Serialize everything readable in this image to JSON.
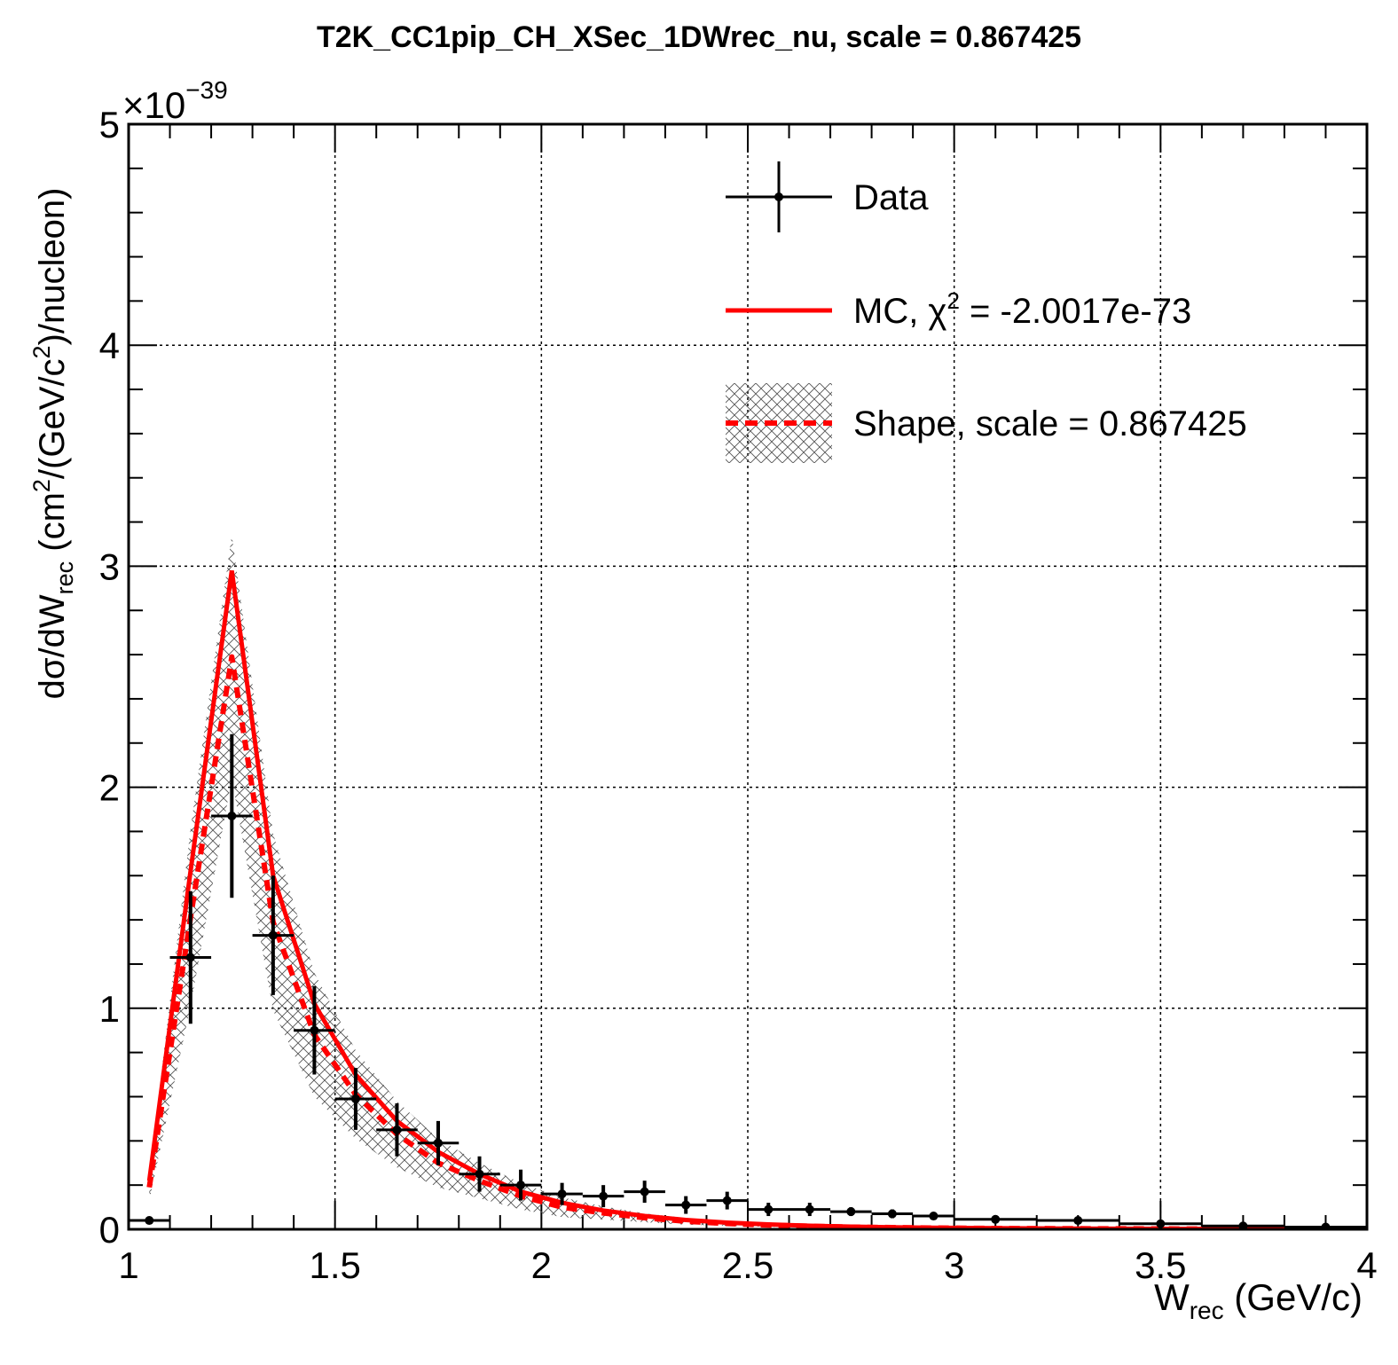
{
  "chart_data": {
    "type": "line",
    "title": "T2K_CC1pip_CH_XSec_1DWrec_nu, scale = 0.867425",
    "xlabel": {
      "main": "W",
      "sub": "rec",
      "unit": " (GeV/c)"
    },
    "ylabel": {
      "p1": "dσ/dW",
      "sub": "rec",
      "p2": " (cm",
      "sup1": "2",
      "p3": "/(GeV/c",
      "sup2": "2",
      "p4": ")/nucleon)"
    },
    "y_multiplier": {
      "base": "×10",
      "exponent": "−39"
    },
    "xlim": [
      1,
      4
    ],
    "ylim": [
      0,
      5
    ],
    "x_ticks": [
      {
        "v": 1,
        "label": "1"
      },
      {
        "v": 1.5,
        "label": "1.5"
      },
      {
        "v": 2,
        "label": "2"
      },
      {
        "v": 2.5,
        "label": "2.5"
      },
      {
        "v": 3,
        "label": "3"
      },
      {
        "v": 3.5,
        "label": "3.5"
      },
      {
        "v": 4,
        "label": "4"
      }
    ],
    "y_ticks": [
      {
        "v": 0,
        "label": "0"
      },
      {
        "v": 1,
        "label": "1"
      },
      {
        "v": 2,
        "label": "2"
      },
      {
        "v": 3,
        "label": "3"
      },
      {
        "v": 4,
        "label": "4"
      },
      {
        "v": 5,
        "label": "5"
      }
    ],
    "grid": true,
    "legend_position": "top-right",
    "legend": [
      {
        "key": "data",
        "label": "Data"
      },
      {
        "key": "mc",
        "label_pre": "MC, χ",
        "label_sup": "2",
        "label_post": " = -2.0017e-73"
      },
      {
        "key": "shape",
        "label": "Shape, scale = 0.867425"
      }
    ],
    "colors": {
      "data": "#000000",
      "mc": "#ff0000",
      "shape": "#ff0000",
      "band": "#666666"
    },
    "series": [
      {
        "key": "data",
        "style": "points-with-errors",
        "points": [
          {
            "x": 1.05,
            "y": 0.04,
            "xlo": 1.0,
            "xhi": 1.1,
            "err": 0.0
          },
          {
            "x": 1.15,
            "y": 1.23,
            "xlo": 1.1,
            "xhi": 1.2,
            "err": 0.3
          },
          {
            "x": 1.25,
            "y": 1.87,
            "xlo": 1.2,
            "xhi": 1.3,
            "err": 0.37
          },
          {
            "x": 1.35,
            "y": 1.33,
            "xlo": 1.3,
            "xhi": 1.4,
            "err": 0.27
          },
          {
            "x": 1.45,
            "y": 0.9,
            "xlo": 1.4,
            "xhi": 1.5,
            "err": 0.2
          },
          {
            "x": 1.55,
            "y": 0.59,
            "xlo": 1.5,
            "xhi": 1.6,
            "err": 0.14
          },
          {
            "x": 1.65,
            "y": 0.45,
            "xlo": 1.6,
            "xhi": 1.7,
            "err": 0.12
          },
          {
            "x": 1.75,
            "y": 0.39,
            "xlo": 1.7,
            "xhi": 1.8,
            "err": 0.1
          },
          {
            "x": 1.85,
            "y": 0.25,
            "xlo": 1.8,
            "xhi": 1.9,
            "err": 0.08
          },
          {
            "x": 1.95,
            "y": 0.2,
            "xlo": 1.9,
            "xhi": 2.0,
            "err": 0.07
          },
          {
            "x": 2.05,
            "y": 0.16,
            "xlo": 2.0,
            "xhi": 2.1,
            "err": 0.05
          },
          {
            "x": 2.15,
            "y": 0.15,
            "xlo": 2.1,
            "xhi": 2.2,
            "err": 0.05
          },
          {
            "x": 2.25,
            "y": 0.17,
            "xlo": 2.2,
            "xhi": 2.3,
            "err": 0.05
          },
          {
            "x": 2.35,
            "y": 0.11,
            "xlo": 2.3,
            "xhi": 2.4,
            "err": 0.04
          },
          {
            "x": 2.45,
            "y": 0.13,
            "xlo": 2.4,
            "xhi": 2.5,
            "err": 0.04
          },
          {
            "x": 2.55,
            "y": 0.09,
            "xlo": 2.5,
            "xhi": 2.6,
            "err": 0.03
          },
          {
            "x": 2.65,
            "y": 0.09,
            "xlo": 2.6,
            "xhi": 2.7,
            "err": 0.03
          },
          {
            "x": 2.75,
            "y": 0.08,
            "xlo": 2.7,
            "xhi": 2.8,
            "err": 0.02
          },
          {
            "x": 2.85,
            "y": 0.07,
            "xlo": 2.8,
            "xhi": 2.9,
            "err": 0.02
          },
          {
            "x": 2.95,
            "y": 0.06,
            "xlo": 2.9,
            "xhi": 3.0,
            "err": 0.015
          },
          {
            "x": 3.1,
            "y": 0.045,
            "xlo": 3.0,
            "xhi": 3.2,
            "err": 0.012
          },
          {
            "x": 3.3,
            "y": 0.04,
            "xlo": 3.2,
            "xhi": 3.4,
            "err": 0.01
          },
          {
            "x": 3.5,
            "y": 0.025,
            "xlo": 3.4,
            "xhi": 3.6,
            "err": 0.008
          },
          {
            "x": 3.7,
            "y": 0.015,
            "xlo": 3.6,
            "xhi": 3.8,
            "err": 0.006
          },
          {
            "x": 3.9,
            "y": 0.01,
            "xlo": 3.8,
            "xhi": 4.0,
            "err": 0.005
          }
        ]
      },
      {
        "key": "mc",
        "style": "solid-line",
        "points": [
          {
            "x": 1.05,
            "y": 0.22
          },
          {
            "x": 1.15,
            "y": 1.62
          },
          {
            "x": 1.25,
            "y": 2.98
          },
          {
            "x": 1.35,
            "y": 1.6
          },
          {
            "x": 1.45,
            "y": 1.02
          },
          {
            "x": 1.55,
            "y": 0.7
          },
          {
            "x": 1.65,
            "y": 0.49
          },
          {
            "x": 1.75,
            "y": 0.35
          },
          {
            "x": 1.85,
            "y": 0.25
          },
          {
            "x": 1.95,
            "y": 0.17
          },
          {
            "x": 2.05,
            "y": 0.12
          },
          {
            "x": 2.15,
            "y": 0.085
          },
          {
            "x": 2.25,
            "y": 0.06
          },
          {
            "x": 2.35,
            "y": 0.042
          },
          {
            "x": 2.45,
            "y": 0.03
          },
          {
            "x": 2.55,
            "y": 0.022
          },
          {
            "x": 2.65,
            "y": 0.016
          },
          {
            "x": 2.75,
            "y": 0.012
          },
          {
            "x": 2.85,
            "y": 0.009
          },
          {
            "x": 2.95,
            "y": 0.007
          },
          {
            "x": 3.1,
            "y": 0.005
          },
          {
            "x": 3.3,
            "y": 0.003
          },
          {
            "x": 3.5,
            "y": 0.002
          },
          {
            "x": 3.7,
            "y": 0.0015
          },
          {
            "x": 3.9,
            "y": 0.001
          }
        ]
      },
      {
        "key": "shape",
        "style": "dashed-line-with-band",
        "points": [
          {
            "x": 1.05,
            "y": 0.19,
            "err": 0.06
          },
          {
            "x": 1.15,
            "y": 1.41,
            "err": 0.4
          },
          {
            "x": 1.25,
            "y": 2.59,
            "err": 0.55
          },
          {
            "x": 1.35,
            "y": 1.39,
            "err": 0.4
          },
          {
            "x": 1.45,
            "y": 0.88,
            "err": 0.28
          },
          {
            "x": 1.55,
            "y": 0.61,
            "err": 0.2
          },
          {
            "x": 1.65,
            "y": 0.43,
            "err": 0.15
          },
          {
            "x": 1.75,
            "y": 0.3,
            "err": 0.11
          },
          {
            "x": 1.85,
            "y": 0.22,
            "err": 0.08
          },
          {
            "x": 1.95,
            "y": 0.15,
            "err": 0.06
          },
          {
            "x": 2.05,
            "y": 0.1,
            "err": 0.045
          },
          {
            "x": 2.15,
            "y": 0.074,
            "err": 0.03
          },
          {
            "x": 2.25,
            "y": 0.052,
            "err": 0.02
          },
          {
            "x": 2.35,
            "y": 0.036,
            "err": 0.015
          },
          {
            "x": 2.45,
            "y": 0.026,
            "err": 0.01
          },
          {
            "x": 2.55,
            "y": 0.019,
            "err": 0.008
          },
          {
            "x": 2.65,
            "y": 0.014,
            "err": 0.006
          },
          {
            "x": 2.75,
            "y": 0.01,
            "err": 0.004
          },
          {
            "x": 2.85,
            "y": 0.008,
            "err": 0.003
          },
          {
            "x": 2.95,
            "y": 0.006,
            "err": 0.002
          },
          {
            "x": 3.1,
            "y": 0.004,
            "err": 0.002
          },
          {
            "x": 3.3,
            "y": 0.003,
            "err": 0.001
          },
          {
            "x": 3.5,
            "y": 0.002,
            "err": 0.001
          },
          {
            "x": 3.7,
            "y": 0.001,
            "err": 0.001
          },
          {
            "x": 3.9,
            "y": 0.001,
            "err": 0.001
          }
        ]
      }
    ]
  }
}
